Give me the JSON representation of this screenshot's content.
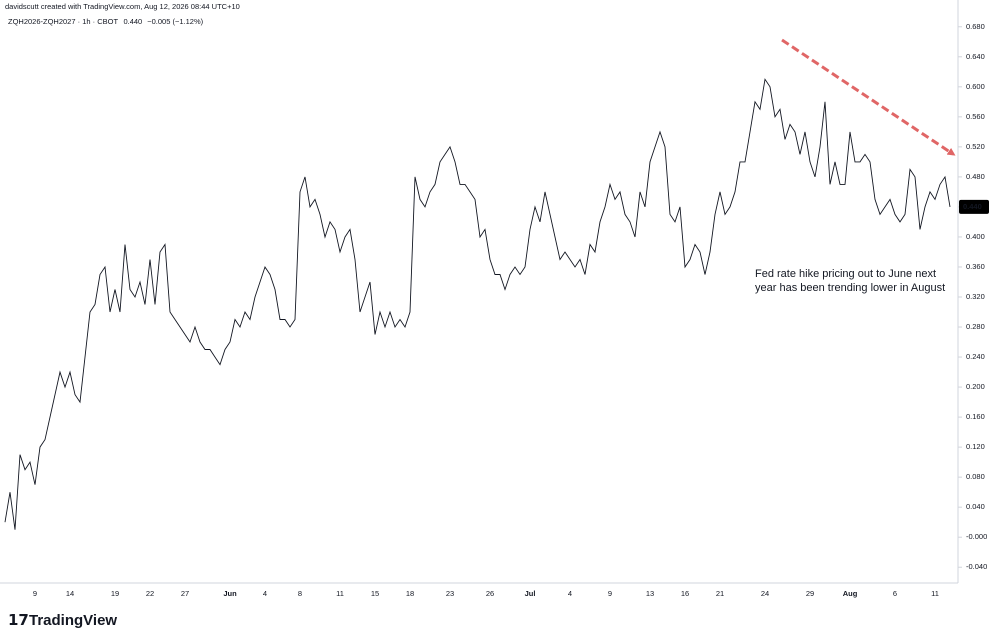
{
  "header": {
    "attribution": "davidscutt created with TradingView.com, Aug 12, 2026 08:44 UTC+10",
    "brand": "TradingView"
  },
  "chart_data": {
    "type": "line",
    "title": "ZQH2026-ZQH2027 · 1h · CBOT",
    "price": "0.440",
    "change": "−0.005 (−1.12%)",
    "annotation": [
      "Fed rate hike pricing out to June next",
      "year has been trending lower in August"
    ],
    "color": "#131722",
    "last_tag_color": "#000000",
    "ylim": [
      -0.061,
      0.709
    ],
    "yticks": [
      {
        "value": 0.68,
        "label": "0.680"
      },
      {
        "value": 0.64,
        "label": "0.640"
      },
      {
        "value": 0.6,
        "label": "0.600"
      },
      {
        "value": 0.56,
        "label": "0.560"
      },
      {
        "value": 0.52,
        "label": "0.520"
      },
      {
        "value": 0.48,
        "label": "0.480"
      },
      {
        "value": 0.44,
        "label": "0.440"
      },
      {
        "value": 0.4,
        "label": "0.400"
      },
      {
        "value": 0.36,
        "label": "0.360"
      },
      {
        "value": 0.32,
        "label": "0.320"
      },
      {
        "value": 0.28,
        "label": "0.280"
      },
      {
        "value": 0.24,
        "label": "0.240"
      },
      {
        "value": 0.2,
        "label": "0.200"
      },
      {
        "value": 0.16,
        "label": "0.160"
      },
      {
        "value": 0.12,
        "label": "0.120"
      },
      {
        "value": 0.08,
        "label": "0.080"
      },
      {
        "value": 0.04,
        "label": "0.040"
      },
      {
        "value": 0,
        "label": "-0.000"
      },
      {
        "value": -0.04,
        "label": "-0.040"
      }
    ],
    "categories": [
      null,
      null,
      null,
      null,
      null,
      null,
      "9",
      null,
      null,
      null,
      null,
      null,
      null,
      "14",
      null,
      null,
      null,
      null,
      null,
      null,
      null,
      null,
      "19",
      null,
      null,
      null,
      null,
      null,
      null,
      "22",
      null,
      null,
      null,
      null,
      null,
      null,
      "27",
      null,
      null,
      null,
      null,
      null,
      null,
      null,
      null,
      "Jun",
      null,
      null,
      null,
      null,
      null,
      null,
      "4",
      null,
      null,
      null,
      null,
      null,
      null,
      "8",
      null,
      null,
      null,
      null,
      null,
      null,
      null,
      "11",
      null,
      null,
      null,
      null,
      null,
      null,
      "15",
      null,
      null,
      null,
      null,
      null,
      null,
      "18",
      null,
      null,
      null,
      null,
      null,
      null,
      null,
      "23",
      null,
      null,
      null,
      null,
      null,
      null,
      null,
      "26",
      null,
      null,
      null,
      null,
      null,
      null,
      null,
      "Jul",
      null,
      null,
      null,
      null,
      null,
      null,
      null,
      "4",
      null,
      null,
      null,
      null,
      null,
      null,
      null,
      "9",
      null,
      null,
      null,
      null,
      null,
      null,
      null,
      "13",
      null,
      null,
      null,
      null,
      null,
      null,
      "16",
      null,
      null,
      null,
      null,
      null,
      null,
      "21",
      null,
      null,
      null,
      null,
      null,
      null,
      null,
      null,
      "24",
      null,
      null,
      null,
      null,
      null,
      null,
      null,
      null,
      "29",
      null,
      null,
      null,
      null,
      null,
      null,
      null,
      "Aug",
      null,
      null,
      null,
      null,
      null,
      null,
      null,
      null,
      "6",
      null,
      null,
      null,
      null,
      null,
      null,
      null,
      "11",
      null,
      null,
      null
    ],
    "values": [
      0.02,
      0.06,
      0.01,
      0.11,
      0.09,
      0.1,
      0.07,
      0.12,
      0.13,
      0.16,
      0.19,
      0.22,
      0.2,
      0.22,
      0.19,
      0.18,
      0.24,
      0.3,
      0.31,
      0.35,
      0.36,
      0.3,
      0.33,
      0.3,
      0.39,
      0.33,
      0.32,
      0.34,
      0.31,
      0.37,
      0.31,
      0.38,
      0.39,
      0.3,
      0.29,
      0.28,
      0.27,
      0.26,
      0.28,
      0.26,
      0.25,
      0.25,
      0.24,
      0.23,
      0.25,
      0.26,
      0.29,
      0.28,
      0.3,
      0.29,
      0.32,
      0.34,
      0.36,
      0.35,
      0.33,
      0.29,
      0.29,
      0.28,
      0.29,
      0.46,
      0.48,
      0.44,
      0.45,
      0.43,
      0.4,
      0.42,
      0.41,
      0.38,
      0.4,
      0.41,
      0.37,
      0.3,
      0.32,
      0.34,
      0.27,
      0.3,
      0.28,
      0.3,
      0.28,
      0.29,
      0.28,
      0.3,
      0.48,
      0.45,
      0.44,
      0.46,
      0.47,
      0.5,
      0.51,
      0.52,
      0.5,
      0.47,
      0.47,
      0.46,
      0.45,
      0.4,
      0.41,
      0.37,
      0.35,
      0.35,
      0.33,
      0.35,
      0.36,
      0.35,
      0.36,
      0.41,
      0.44,
      0.42,
      0.46,
      0.43,
      0.4,
      0.37,
      0.38,
      0.37,
      0.36,
      0.37,
      0.35,
      0.39,
      0.38,
      0.42,
      0.44,
      0.47,
      0.45,
      0.46,
      0.43,
      0.42,
      0.4,
      0.46,
      0.44,
      0.5,
      0.52,
      0.54,
      0.52,
      0.43,
      0.42,
      0.44,
      0.36,
      0.37,
      0.39,
      0.38,
      0.35,
      0.38,
      0.43,
      0.46,
      0.43,
      0.44,
      0.46,
      0.5,
      0.5,
      0.54,
      0.58,
      0.57,
      0.61,
      0.6,
      0.56,
      0.57,
      0.53,
      0.55,
      0.54,
      0.51,
      0.54,
      0.5,
      0.48,
      0.52,
      0.58,
      0.47,
      0.5,
      0.47,
      0.47,
      0.54,
      0.5,
      0.5,
      0.51,
      0.5,
      0.45,
      0.43,
      0.44,
      0.45,
      0.43,
      0.42,
      0.43,
      0.49,
      0.48,
      0.41,
      0.44,
      0.46,
      0.45,
      0.47,
      0.48,
      0.44
    ]
  }
}
